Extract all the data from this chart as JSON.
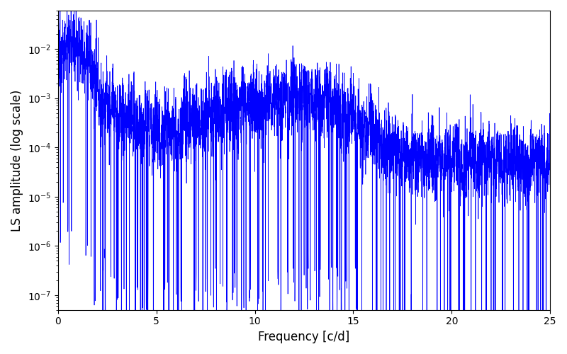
{
  "title": "",
  "xlabel": "Frequency [c/d]",
  "ylabel": "LS amplitude (log scale)",
  "line_color": "blue",
  "background_color": "#ffffff",
  "xlim": [
    0,
    25
  ],
  "ylim": [
    5e-08,
    0.06
  ],
  "xticks": [
    0,
    5,
    10,
    15,
    20,
    25
  ],
  "freq_max": 25.0,
  "n_points": 5000,
  "seed": 12345,
  "linewidth": 0.5
}
